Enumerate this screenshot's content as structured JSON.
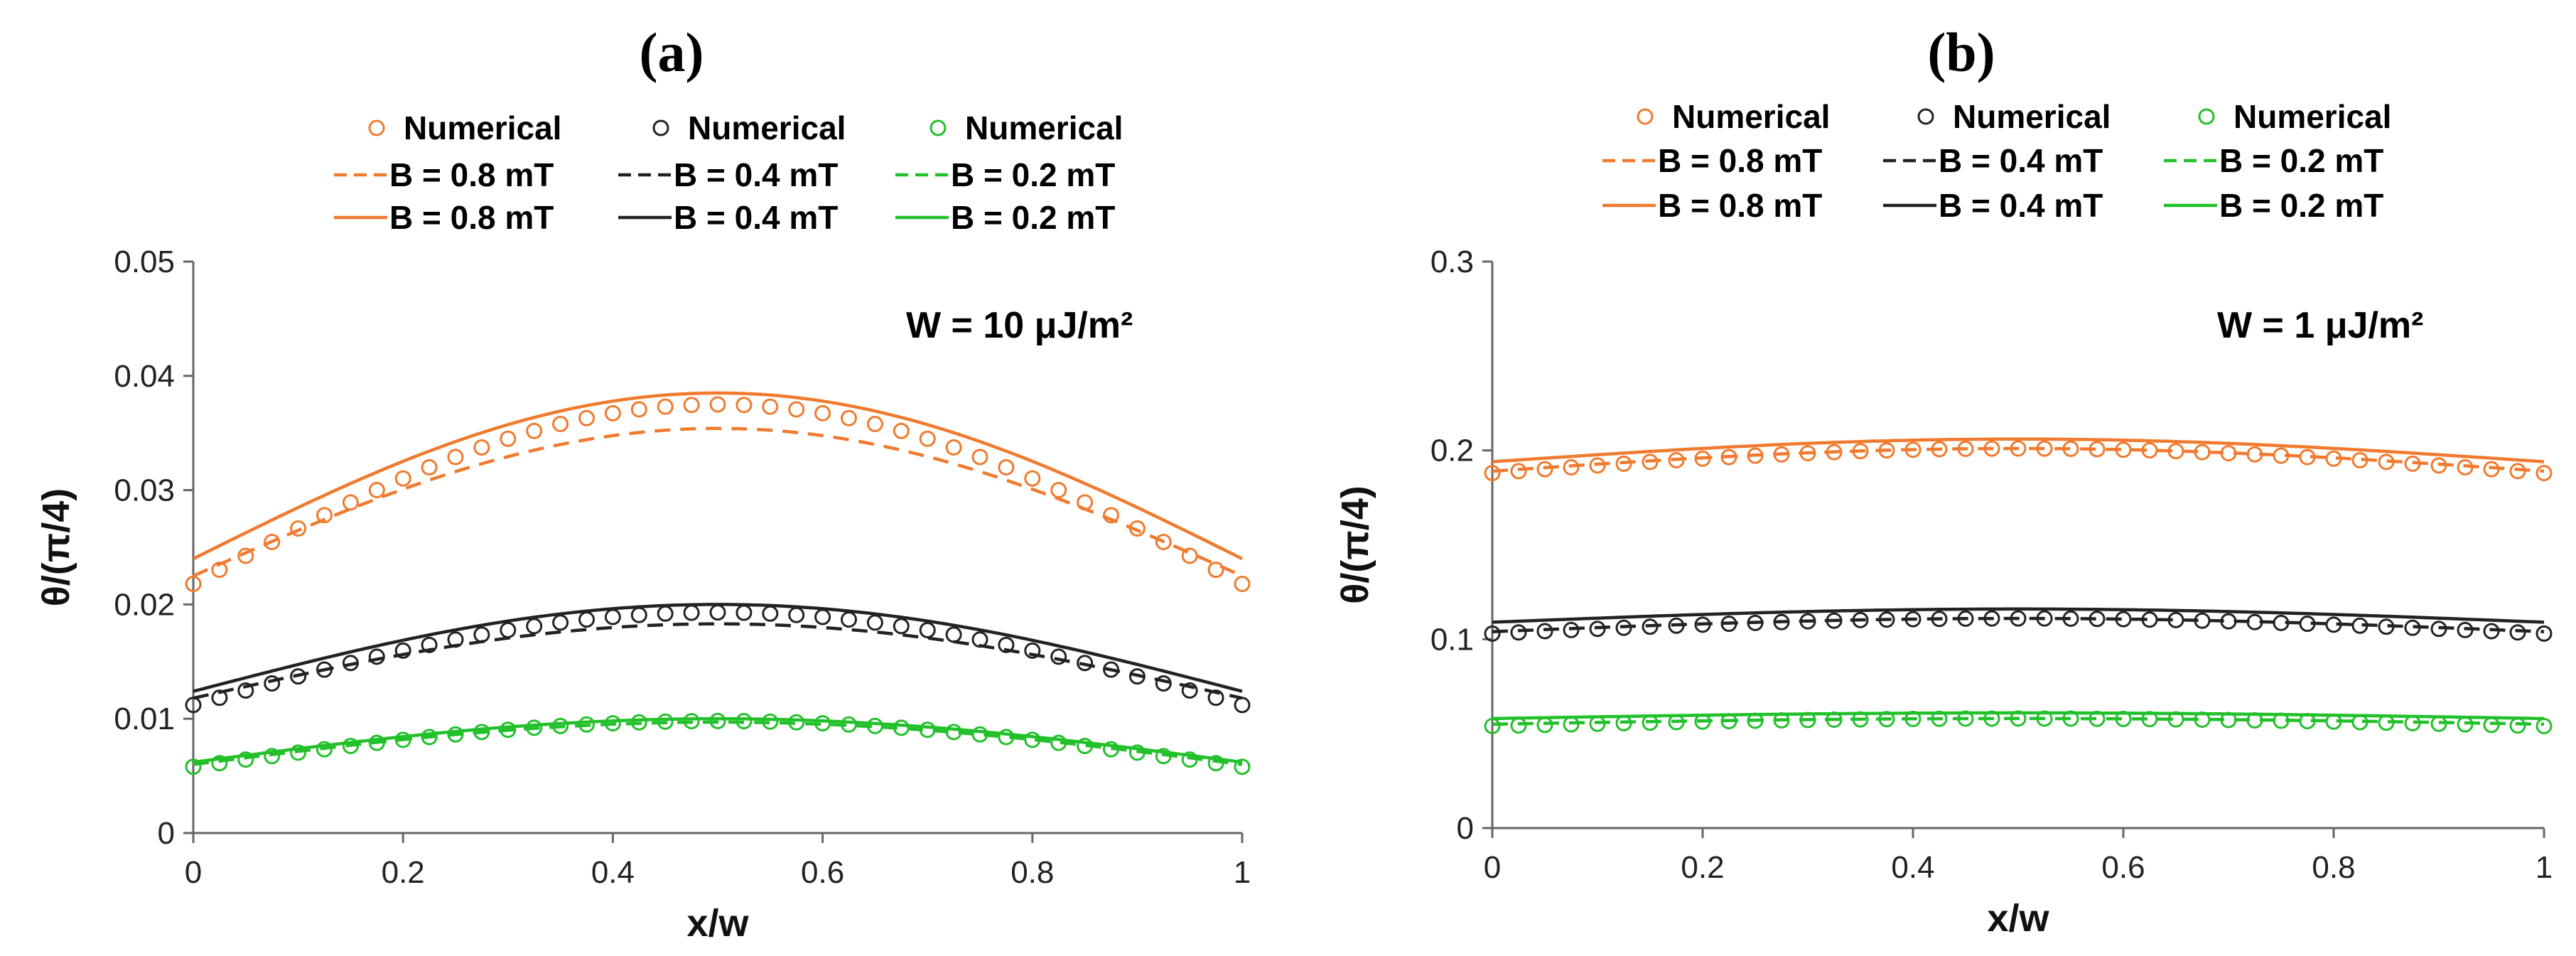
{
  "chart_data": [
    {
      "panel": "(a)",
      "type": "line",
      "xlabel": "x/w",
      "ylabel": "θ/(π/4)",
      "xlim": [
        0,
        1
      ],
      "ylim": [
        0,
        0.05
      ],
      "xticks": [
        "0",
        "0.2",
        "0.4",
        "0.6",
        "0.8",
        "1"
      ],
      "yticks": [
        "0",
        "0.01",
        "0.02",
        "0.03",
        "0.04",
        "0.05"
      ],
      "annotation": "W = 10 μJ/m²",
      "legend": [
        [
          "Numerical",
          "Numerical",
          "Numerical"
        ],
        [
          "B = 0.8 mT",
          "B = 0.4 mT",
          "B = 0.2 mT"
        ],
        [
          "B = 0.8 mT",
          "B = 0.4 mT",
          "B = 0.2 mT"
        ]
      ],
      "series": [
        {
          "name": "Numerical",
          "B": "0.8 mT",
          "style": "markers",
          "color": "#F07A2E",
          "base": 0.0218,
          "peak": 0.0375
        },
        {
          "name": "Numerical",
          "B": "0.4 mT",
          "style": "markers",
          "color": "#222222",
          "base": 0.0112,
          "peak": 0.0193
        },
        {
          "name": "Numerical",
          "B": "0.2 mT",
          "style": "markers",
          "color": "#22C02A",
          "base": 0.0058,
          "peak": 0.0098
        },
        {
          "name": "B = 0.8 mT",
          "style": "dashed",
          "color": "#F07A2E",
          "base": 0.0225,
          "peak": 0.0354
        },
        {
          "name": "B = 0.4 mT",
          "style": "dashed",
          "color": "#222222",
          "base": 0.0118,
          "peak": 0.0183
        },
        {
          "name": "B = 0.2 mT",
          "style": "dashed",
          "color": "#22C02A",
          "base": 0.006,
          "peak": 0.0097
        },
        {
          "name": "B = 0.8 mT",
          "style": "solid",
          "color": "#F07A2E",
          "base": 0.024,
          "peak": 0.0385
        },
        {
          "name": "B = 0.4 mT",
          "style": "solid",
          "color": "#222222",
          "base": 0.0124,
          "peak": 0.02
        },
        {
          "name": "B = 0.2 mT",
          "style": "solid",
          "color": "#22C02A",
          "base": 0.0062,
          "peak": 0.01
        }
      ]
    },
    {
      "panel": "(b)",
      "type": "line",
      "xlabel": "x/w",
      "ylabel": "θ/(π/4)",
      "xlim": [
        0,
        1
      ],
      "ylim": [
        0,
        0.3
      ],
      "xticks": [
        "0",
        "0.2",
        "0.4",
        "0.6",
        "0.8",
        "1"
      ],
      "yticks": [
        "0",
        "0.1",
        "0.2",
        "0.3"
      ],
      "annotation": "W = 1 μJ/m²",
      "legend": [
        [
          "Numerical",
          "Numerical",
          "Numerical"
        ],
        [
          "B = 0.8 mT",
          "B = 0.4 mT",
          "B = 0.2 mT"
        ],
        [
          "B = 0.8 mT",
          "B = 0.4 mT",
          "B = 0.2 mT"
        ]
      ],
      "series": [
        {
          "name": "Numerical",
          "B": "0.8 mT",
          "style": "markers",
          "color": "#F07A2E",
          "base": 0.188,
          "peak": 0.201
        },
        {
          "name": "Numerical",
          "B": "0.4 mT",
          "style": "markers",
          "color": "#222222",
          "base": 0.103,
          "peak": 0.111
        },
        {
          "name": "Numerical",
          "B": "0.2 mT",
          "style": "markers",
          "color": "#22C02A",
          "base": 0.054,
          "peak": 0.058
        },
        {
          "name": "B = 0.8 mT",
          "style": "dashed",
          "color": "#F07A2E",
          "base": 0.189,
          "peak": 0.201
        },
        {
          "name": "B = 0.4 mT",
          "style": "dashed",
          "color": "#222222",
          "base": 0.104,
          "peak": 0.111
        },
        {
          "name": "B = 0.2 mT",
          "style": "dashed",
          "color": "#22C02A",
          "base": 0.055,
          "peak": 0.058
        },
        {
          "name": "B = 0.8 mT",
          "style": "solid",
          "color": "#F07A2E",
          "base": 0.194,
          "peak": 0.206
        },
        {
          "name": "B = 0.4 mT",
          "style": "solid",
          "color": "#222222",
          "base": 0.109,
          "peak": 0.116
        },
        {
          "name": "B = 0.2 mT",
          "style": "solid",
          "color": "#22C02A",
          "base": 0.058,
          "peak": 0.061
        }
      ]
    }
  ]
}
